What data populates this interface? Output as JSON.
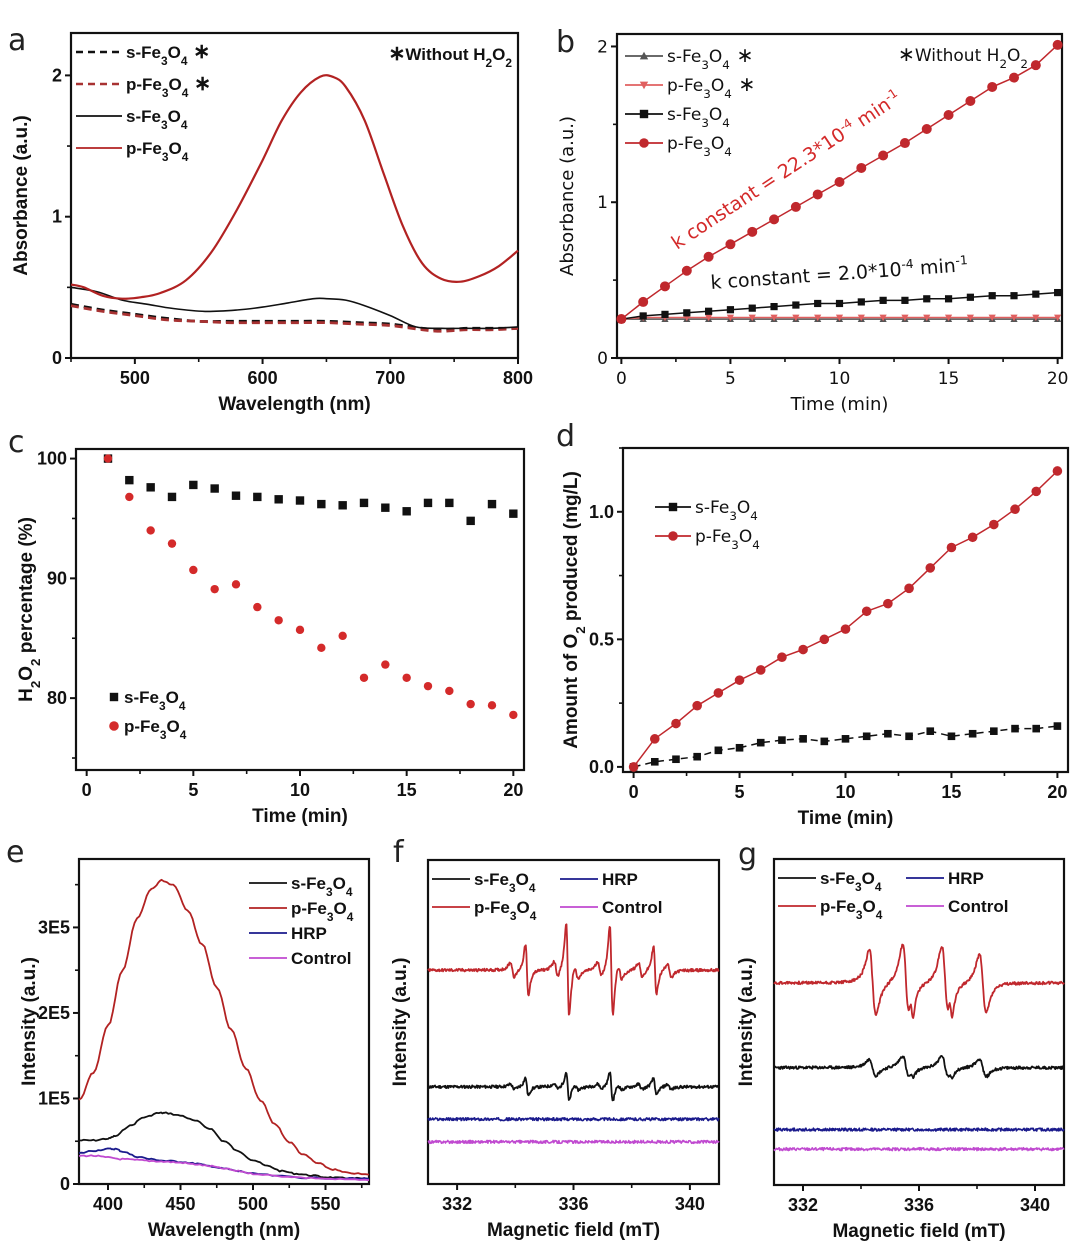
{
  "figure": {
    "panels": [
      "a",
      "b",
      "c",
      "d",
      "e",
      "f",
      "g"
    ]
  },
  "chart_data": [
    {
      "id": "a",
      "panel_label": "a",
      "type": "line",
      "title": "",
      "xlabel": "Wavelength (nm)",
      "ylabel": "Absorbance (a.u.)",
      "xlim": [
        450,
        800
      ],
      "ylim": [
        0,
        2.3
      ],
      "xticks": [
        500,
        600,
        700,
        800
      ],
      "yticks": [
        0,
        1,
        2
      ],
      "minor_xticks": [
        450,
        550,
        650,
        750
      ],
      "minor_yticks": [
        0.5,
        1.5
      ],
      "grid": false,
      "legend_position": "top-left",
      "annotation": "* Without H2O2",
      "series": [
        {
          "name": "s-Fe3O4*",
          "color": "#111111",
          "dash": true,
          "x": [
            450,
            475,
            500,
            525,
            550,
            575,
            600,
            625,
            650,
            675,
            700,
            725,
            740,
            760,
            780,
            800
          ],
          "y": [
            0.38,
            0.34,
            0.31,
            0.28,
            0.26,
            0.26,
            0.26,
            0.26,
            0.26,
            0.25,
            0.24,
            0.21,
            0.2,
            0.21,
            0.21,
            0.21
          ]
        },
        {
          "name": "p-Fe3O4*",
          "color": "#a83232",
          "dash": true,
          "x": [
            450,
            475,
            500,
            525,
            550,
            575,
            600,
            625,
            650,
            675,
            700,
            725,
            740,
            760,
            780,
            800
          ],
          "y": [
            0.37,
            0.33,
            0.3,
            0.27,
            0.26,
            0.25,
            0.25,
            0.25,
            0.25,
            0.24,
            0.23,
            0.2,
            0.19,
            0.2,
            0.2,
            0.21
          ]
        },
        {
          "name": "s-Fe3O4",
          "color": "#111111",
          "dash": false,
          "x": [
            450,
            470,
            490,
            510,
            530,
            555,
            580,
            600,
            620,
            640,
            650,
            665,
            680,
            700,
            720,
            740,
            760,
            780,
            800
          ],
          "y": [
            0.5,
            0.47,
            0.41,
            0.38,
            0.35,
            0.33,
            0.34,
            0.36,
            0.39,
            0.42,
            0.42,
            0.41,
            0.37,
            0.3,
            0.22,
            0.21,
            0.21,
            0.21,
            0.22
          ]
        },
        {
          "name": "p-Fe3O4",
          "color": "#b22222",
          "dash": false,
          "x": [
            450,
            460,
            475,
            490,
            505,
            520,
            540,
            560,
            580,
            600,
            615,
            630,
            645,
            655,
            665,
            680,
            695,
            710,
            725,
            740,
            755,
            770,
            785,
            800
          ],
          "y": [
            0.52,
            0.5,
            0.44,
            0.42,
            0.43,
            0.46,
            0.55,
            0.75,
            1.05,
            1.4,
            1.68,
            1.88,
            1.99,
            1.99,
            1.92,
            1.68,
            1.3,
            0.93,
            0.67,
            0.56,
            0.54,
            0.58,
            0.65,
            0.76
          ]
        }
      ]
    },
    {
      "id": "b",
      "panel_label": "b",
      "type": "line",
      "title": "",
      "xlabel": "Time (min)",
      "ylabel": "Absorbance (a.u.)",
      "xlim": [
        -0.2,
        20.2
      ],
      "ylim": [
        0,
        2.08
      ],
      "xticks": [
        0,
        5,
        10,
        15,
        20
      ],
      "yticks": [
        0,
        1,
        2
      ],
      "minor_xticks": [
        2.5,
        7.5,
        12.5,
        17.5
      ],
      "minor_yticks": [
        0.5,
        1.5
      ],
      "grid": false,
      "legend_position": "top-left",
      "annotation": "* Without H2O2",
      "rate_annotations": [
        {
          "text_main": "k constant = 22.3*10",
          "exp": "-4",
          "unit": " min",
          "unit_exp": "-1",
          "color": "#d42a2a"
        },
        {
          "text_main": "k constant = 2.0*10",
          "exp": "-4",
          "unit": " min",
          "unit_exp": "-1",
          "color": "#111111"
        }
      ],
      "x": [
        0,
        1,
        2,
        3,
        4,
        5,
        6,
        7,
        8,
        9,
        10,
        11,
        12,
        13,
        14,
        15,
        16,
        17,
        18,
        19,
        20
      ],
      "series": [
        {
          "name": "s-Fe3O4*",
          "color": "#555555",
          "marker": "triangle-up",
          "y": [
            0.25,
            0.25,
            0.25,
            0.25,
            0.25,
            0.25,
            0.25,
            0.25,
            0.25,
            0.25,
            0.25,
            0.25,
            0.25,
            0.25,
            0.25,
            0.25,
            0.25,
            0.25,
            0.25,
            0.25,
            0.25
          ]
        },
        {
          "name": "p-Fe3O4*",
          "color": "#e06060",
          "marker": "triangle-down",
          "y": [
            0.25,
            0.26,
            0.26,
            0.26,
            0.26,
            0.26,
            0.26,
            0.26,
            0.26,
            0.26,
            0.26,
            0.26,
            0.26,
            0.26,
            0.26,
            0.26,
            0.26,
            0.26,
            0.26,
            0.26,
            0.26
          ]
        },
        {
          "name": "s-Fe3O4",
          "color": "#111111",
          "marker": "square",
          "y": [
            0.25,
            0.27,
            0.28,
            0.29,
            0.3,
            0.31,
            0.32,
            0.33,
            0.34,
            0.35,
            0.35,
            0.36,
            0.37,
            0.37,
            0.38,
            0.38,
            0.39,
            0.4,
            0.4,
            0.41,
            0.42
          ]
        },
        {
          "name": "p-Fe3O4",
          "color": "#c0282d",
          "marker": "circle",
          "y": [
            0.25,
            0.36,
            0.46,
            0.56,
            0.65,
            0.73,
            0.81,
            0.89,
            0.97,
            1.05,
            1.13,
            1.22,
            1.3,
            1.38,
            1.47,
            1.56,
            1.65,
            1.74,
            1.8,
            1.88,
            2.01
          ]
        }
      ]
    },
    {
      "id": "c",
      "panel_label": "c",
      "type": "scatter",
      "title": "",
      "xlabel": "Time (min)",
      "ylabel": "H2O2 percentage (%)",
      "xlim": [
        -0.5,
        20.5
      ],
      "ylim": [
        74,
        100.8
      ],
      "xticks": [
        0,
        5,
        10,
        15,
        20
      ],
      "yticks": [
        80,
        90,
        100
      ],
      "minor_xticks": [
        2.5,
        7.5,
        12.5,
        17.5
      ],
      "minor_yticks": [
        75,
        85,
        95
      ],
      "grid": false,
      "legend_position": "bottom-left",
      "series": [
        {
          "name": "s-Fe3O4",
          "color": "#111111",
          "marker": "square",
          "x": [
            1,
            2,
            3,
            4,
            5,
            6,
            7,
            8,
            9,
            10,
            11,
            12,
            13,
            14,
            15,
            16,
            17,
            18,
            19,
            20
          ],
          "y": [
            100,
            98.2,
            97.6,
            96.8,
            97.8,
            97.5,
            96.9,
            96.8,
            96.6,
            96.5,
            96.2,
            96.1,
            96.3,
            95.9,
            95.6,
            96.3,
            96.3,
            94.8,
            96.2,
            95.4
          ]
        },
        {
          "name": "p-Fe3O4",
          "color": "#d42a2a",
          "marker": "circle",
          "x": [
            1,
            2,
            3,
            4,
            5,
            6,
            7,
            8,
            9,
            10,
            11,
            12,
            13,
            14,
            15,
            16,
            17,
            18,
            19,
            20
          ],
          "y": [
            100,
            96.8,
            94,
            92.9,
            90.7,
            89.1,
            89.5,
            87.6,
            86.5,
            85.7,
            84.2,
            85.2,
            81.7,
            82.8,
            81.7,
            81,
            80.6,
            79.5,
            79.4,
            78.6
          ]
        }
      ]
    },
    {
      "id": "d",
      "panel_label": "d",
      "type": "line",
      "title": "",
      "xlabel": "Time (min)",
      "ylabel": "Amount of O2 produced (mg/L)",
      "xlim": [
        -0.5,
        20.5
      ],
      "ylim": [
        -0.02,
        1.25
      ],
      "xticks": [
        0,
        5,
        10,
        15,
        20
      ],
      "yticks": [
        0.0,
        0.5,
        1.0
      ],
      "ytick_labels": [
        "0.0",
        "0.5",
        "1.0"
      ],
      "minor_xticks": [
        2.5,
        7.5,
        12.5,
        17.5
      ],
      "minor_yticks": [
        0.25,
        0.75,
        1.25
      ],
      "grid": false,
      "legend_position": "top-left",
      "x": [
        0,
        1,
        2,
        3,
        4,
        5,
        6,
        7,
        8,
        9,
        10,
        11,
        12,
        13,
        14,
        15,
        16,
        17,
        18,
        19,
        20
      ],
      "series": [
        {
          "name": "s-Fe3O4",
          "color": "#111111",
          "marker": "square",
          "dash": true,
          "y": [
            0.0,
            0.02,
            0.03,
            0.04,
            0.065,
            0.075,
            0.095,
            0.105,
            0.11,
            0.1,
            0.11,
            0.12,
            0.13,
            0.12,
            0.14,
            0.12,
            0.13,
            0.14,
            0.15,
            0.15,
            0.16
          ]
        },
        {
          "name": "p-Fe3O4",
          "color": "#c0282d",
          "marker": "circle",
          "dash": false,
          "y": [
            0.0,
            0.11,
            0.17,
            0.24,
            0.29,
            0.34,
            0.38,
            0.43,
            0.46,
            0.5,
            0.54,
            0.61,
            0.64,
            0.7,
            0.78,
            0.86,
            0.9,
            0.95,
            1.01,
            1.08,
            1.16
          ]
        }
      ]
    },
    {
      "id": "e",
      "panel_label": "e",
      "type": "line",
      "title": "",
      "xlabel": "Wavelength (nm)",
      "ylabel": "Intensity (a.u.)",
      "xlim": [
        380,
        580
      ],
      "ylim": [
        0,
        380000
      ],
      "xticks": [
        400,
        450,
        500,
        550
      ],
      "yticks": [
        0,
        100000,
        200000,
        300000
      ],
      "ytick_labels": [
        "0",
        "1E5",
        "2E5",
        "3E5"
      ],
      "minor_xticks": [
        425,
        475,
        525,
        575
      ],
      "minor_yticks": [
        50000,
        150000,
        250000,
        350000
      ],
      "grid": false,
      "legend_position": "top-right",
      "series": [
        {
          "name": "s-Fe3O4",
          "color": "#111111",
          "x": [
            380,
            390,
            400,
            405,
            415,
            425,
            435,
            440,
            450,
            460,
            470,
            480,
            490,
            500,
            510,
            520,
            530,
            540,
            550,
            560,
            570,
            580
          ],
          "y": [
            51000,
            51000,
            53000,
            56000,
            68000,
            78000,
            83000,
            83000,
            80000,
            74000,
            65000,
            50000,
            38000,
            28000,
            21000,
            15000,
            12000,
            10000,
            8000,
            7000,
            6500,
            6000
          ]
        },
        {
          "name": "p-Fe3O4",
          "color": "#b22222",
          "x": [
            380,
            390,
            400,
            410,
            420,
            430,
            437,
            445,
            455,
            465,
            475,
            485,
            495,
            505,
            515,
            525,
            535,
            545,
            555,
            565,
            580
          ],
          "y": [
            98000,
            130000,
            185000,
            250000,
            310000,
            345000,
            355000,
            350000,
            320000,
            280000,
            230000,
            180000,
            135000,
            98000,
            70000,
            49000,
            34000,
            24000,
            17000,
            13000,
            11000
          ]
        },
        {
          "name": "HRP",
          "color": "#1a1a8c",
          "x": [
            380,
            390,
            400,
            405,
            410,
            420,
            430,
            440,
            450,
            460,
            470,
            480,
            490,
            500,
            520,
            540,
            560,
            580
          ],
          "y": [
            36000,
            39000,
            41000,
            41000,
            38000,
            32000,
            29000,
            27000,
            26000,
            24000,
            21000,
            18000,
            15000,
            12000,
            9000,
            7000,
            6500,
            6000
          ]
        },
        {
          "name": "Control",
          "color": "#c04ad0",
          "x": [
            380,
            390,
            400,
            410,
            420,
            430,
            440,
            450,
            460,
            470,
            480,
            490,
            500,
            520,
            540,
            560,
            580
          ],
          "y": [
            33000,
            33000,
            31000,
            29000,
            28000,
            27000,
            26000,
            25000,
            23000,
            21000,
            18000,
            15000,
            12000,
            9000,
            7000,
            5500,
            4500
          ]
        }
      ]
    },
    {
      "id": "f",
      "panel_label": "f",
      "type": "line",
      "title": "",
      "xlabel": "Magnetic field (mT)",
      "ylabel": "Intensity (a.u.)",
      "xlim": [
        331,
        341
      ],
      "ylim": [
        0,
        1
      ],
      "xticks": [
        332,
        336,
        340
      ],
      "minor_xticks": [
        334,
        338
      ],
      "yticks": [],
      "grid": false,
      "legend_position": "top",
      "legend_columns": 2,
      "signal": {
        "peaks_mT": [
          334.4,
          335.8,
          337.3,
          338.8
        ],
        "small_peaks_mT": [
          333.9,
          335.4,
          336.1,
          336.9,
          337.6,
          338.3,
          339.3
        ],
        "linewidth_mT": 0.09
      },
      "series": [
        {
          "name": "s-Fe3O4",
          "color": "#111111",
          "baseline": 0.3,
          "amplitude": [
            0.055,
            0.09,
            0.09,
            0.055
          ],
          "noise": 0.004
        },
        {
          "name": "p-Fe3O4",
          "color": "#c0282d",
          "baseline": 0.66,
          "amplitude": [
            0.16,
            0.29,
            0.28,
            0.15
          ],
          "noise": 0.004
        },
        {
          "name": "HRP",
          "color": "#1a1a8c",
          "baseline": 0.2,
          "amplitude": [
            0,
            0,
            0,
            0
          ],
          "noise": 0.004
        },
        {
          "name": "Control",
          "color": "#c04ad0",
          "baseline": 0.13,
          "amplitude": [
            0,
            0,
            0,
            0
          ],
          "noise": 0.004
        }
      ]
    },
    {
      "id": "g",
      "panel_label": "g",
      "type": "line",
      "title": "",
      "xlabel": "Magnetic field (mT)",
      "ylabel": "Intensity (a.u.)",
      "xlim": [
        331,
        341
      ],
      "ylim": [
        0,
        1
      ],
      "xticks": [
        332,
        336,
        340
      ],
      "minor_xticks": [
        334,
        338
      ],
      "yticks": [],
      "grid": false,
      "legend_position": "top",
      "legend_columns": 2,
      "signal": {
        "peaks_mT": [
          334.4,
          335.55,
          336.9,
          338.2
        ],
        "linewidth_mT": 0.2
      },
      "series": [
        {
          "name": "s-Fe3O4",
          "color": "#111111",
          "baseline": 0.36,
          "amplitude": [
            0.05,
            0.07,
            0.07,
            0.055
          ],
          "noise": 0.004
        },
        {
          "name": "p-Fe3O4",
          "color": "#c0282d",
          "baseline": 0.62,
          "amplitude": [
            0.2,
            0.23,
            0.22,
            0.18
          ],
          "noise": 0.004
        },
        {
          "name": "HRP",
          "color": "#1a1a8c",
          "baseline": 0.17,
          "amplitude": [
            0,
            0,
            0,
            0
          ],
          "noise": 0.004
        },
        {
          "name": "Control",
          "color": "#c04ad0",
          "baseline": 0.11,
          "amplitude": [
            0,
            0,
            0,
            0
          ],
          "noise": 0.004
        }
      ]
    }
  ]
}
